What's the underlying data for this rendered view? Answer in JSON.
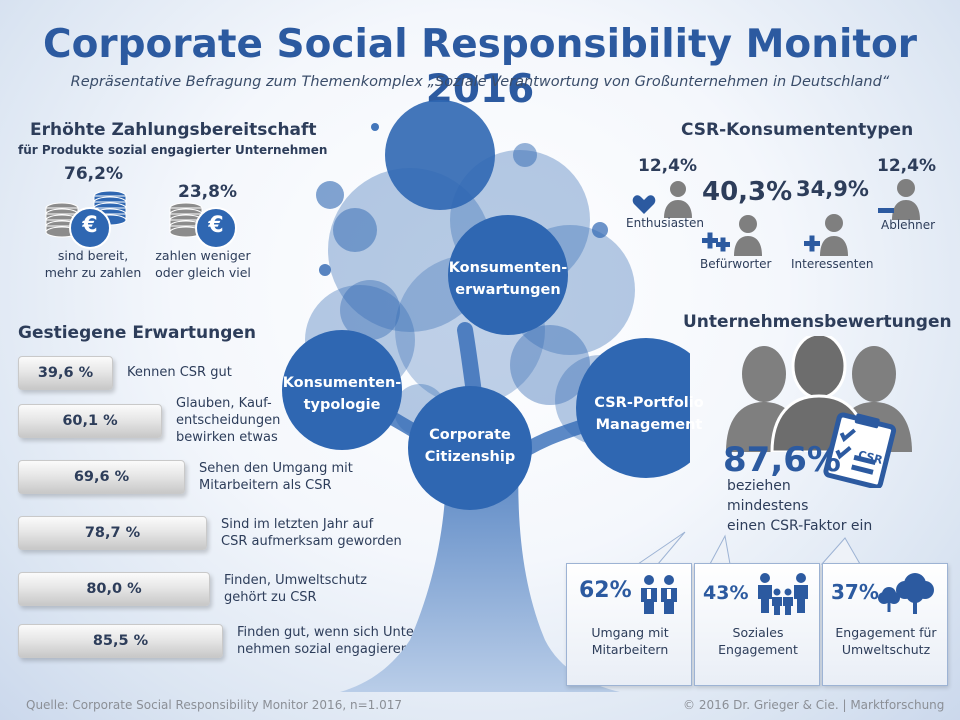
{
  "title": "Corporate Social Responsibility Monitor 2016",
  "subtitle": "Repräsentative Befragung zum Themenkomplex „Soziale Verantwortung von Großunternehmen in Deutschland“",
  "zahlung": {
    "heading": "Erhöhte Zahlungsbereitschaft",
    "subheading": "für Produkte sozial engagierter Unternehmen",
    "currency_symbol": "€",
    "items": [
      {
        "pct": "76,2%",
        "line1": "sind bereit,",
        "line2": "mehr zu zahlen"
      },
      {
        "pct": "23,8%",
        "line1": "zahlen weniger",
        "line2": "oder gleich viel"
      }
    ]
  },
  "erwartungen": {
    "heading": "Gestiegene Erwartungen",
    "items": [
      {
        "value": "39,6 %",
        "fraction": 0.396,
        "lines": [
          "Kennen CSR gut"
        ]
      },
      {
        "value": "60,1 %",
        "fraction": 0.601,
        "lines": [
          "Glauben, Kauf-",
          "entscheidungen",
          "bewirken etwas"
        ]
      },
      {
        "value": "69,6 %",
        "fraction": 0.696,
        "lines": [
          "Sehen den Umgang mit",
          "Mitarbeitern als CSR"
        ]
      },
      {
        "value": "78,7 %",
        "fraction": 0.787,
        "lines": [
          "Sind im letzten Jahr auf",
          "CSR aufmerksam geworden"
        ]
      },
      {
        "value": "80,0 %",
        "fraction": 0.8,
        "lines": [
          "Finden, Umweltschutz",
          "gehört zu CSR"
        ]
      },
      {
        "value": "85,5 %",
        "fraction": 0.855,
        "lines": [
          "Finden gut, wenn sich Unter-",
          "nehmen sozial  engagieren"
        ]
      }
    ]
  },
  "tree": {
    "bubbles": [
      {
        "line1": "Konsumenten-",
        "line2": "erwartungen"
      },
      {
        "line1": "Konsumenten-",
        "line2": "typologie"
      },
      {
        "line1": "Corporate",
        "line2": "Citizenship"
      },
      {
        "line1": "CSR-Portfolio",
        "line2": "Management"
      }
    ]
  },
  "konsumententypen": {
    "heading": "CSR-Konsumententypen",
    "types": [
      {
        "pct": "12,4%",
        "label": "Enthusiasten",
        "icon": "heart-person-icon"
      },
      {
        "pct": "40,3%",
        "label": "Befürworter",
        "icon": "plus-plus-person-icon"
      },
      {
        "pct": "34,9%",
        "label": "Interessenten",
        "icon": "plus-person-icon"
      },
      {
        "pct": "12,4%",
        "label": "Ablehner",
        "icon": "minus-person-icon"
      }
    ]
  },
  "bewertungen": {
    "heading": "Unternehmensbewertungen",
    "pct": "87,6%",
    "badge": "CSR",
    "desc": [
      "beziehen",
      "mindestens",
      "einen CSR-Faktor ein"
    ],
    "cards": [
      {
        "pct": "62%",
        "label1": "Umgang mit",
        "label2": "Mitarbeitern",
        "icon": "employees-icon"
      },
      {
        "pct": "43%",
        "label1": "Soziales",
        "label2": "Engagement",
        "icon": "family-icon"
      },
      {
        "pct": "37%",
        "label1": "Engagement für",
        "label2": "Umweltschutz",
        "icon": "trees-icon"
      }
    ]
  },
  "footer": {
    "source": "Quelle: Corporate  Social  Responsibility  Monitor  2016,  n=1.017",
    "copyright": "© 2016 Dr. Grieger & Cie. | Marktforschung"
  },
  "colors": {
    "accent": "#2c5aa0",
    "dark": "#2d3d5a",
    "gray_icon": "#7f7f7f",
    "tree": "#2f67b2"
  }
}
